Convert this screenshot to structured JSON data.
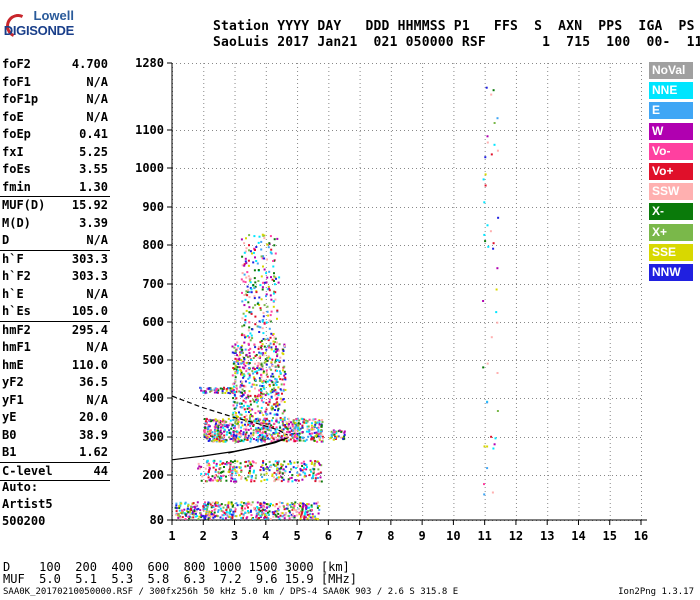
{
  "logo": {
    "line1": "Lowell",
    "line2": "DIGISONDE"
  },
  "header": {
    "line1": "Station YYYY DAY   DDD HHMMSS P1   FFS  S  AXN  PPS  IGA  PS",
    "line2": "SaoLuis 2017 Jan21  021 050000 RSF       1  715  100  00-  11"
  },
  "params": [
    {
      "k": "foF2",
      "v": "4.700"
    },
    {
      "k": "foF1",
      "v": "N/A"
    },
    {
      "k": "foF1p",
      "v": "N/A"
    },
    {
      "k": "foE",
      "v": "N/A"
    },
    {
      "k": "foEp",
      "v": "0.41"
    },
    {
      "k": "fxI",
      "v": "5.25"
    },
    {
      "k": "foEs",
      "v": "3.55"
    },
    {
      "k": "fmin",
      "v": "1.30",
      "sep": true
    },
    {
      "k": "MUF(D)",
      "v": "15.92"
    },
    {
      "k": "M(D)",
      "v": "3.39"
    },
    {
      "k": "D",
      "v": "N/A",
      "sep": true
    },
    {
      "k": "h`F",
      "v": "303.3"
    },
    {
      "k": "h`F2",
      "v": "303.3"
    },
    {
      "k": "h`E",
      "v": "N/A"
    },
    {
      "k": "h`Es",
      "v": "105.0",
      "sep": true
    },
    {
      "k": "hmF2",
      "v": "295.4"
    },
    {
      "k": "hmF1",
      "v": "N/A"
    },
    {
      "k": "hmE",
      "v": "110.0"
    },
    {
      "k": "yF2",
      "v": "36.5"
    },
    {
      "k": "yF1",
      "v": "N/A"
    },
    {
      "k": "yE",
      "v": "20.0"
    },
    {
      "k": "B0",
      "v": "38.9"
    },
    {
      "k": "B1",
      "v": "1.62",
      "sep": true
    },
    {
      "k": "C-level",
      "v": "44",
      "sep": true
    }
  ],
  "auto": {
    "l1": "Auto:",
    "l2": "Artist5",
    "l3": "500200"
  },
  "legend": [
    {
      "label": "NoVal",
      "color": "#a0a0a0"
    },
    {
      "label": "NNE",
      "color": "#00e5ff"
    },
    {
      "label": "E",
      "color": "#3fa6f5"
    },
    {
      "label": "W",
      "color": "#b000b0"
    },
    {
      "label": "Vo-",
      "color": "#ff40a0"
    },
    {
      "label": "Vo+",
      "color": "#e0102a"
    },
    {
      "label": "SSW",
      "color": "#ffb0b0"
    },
    {
      "label": "X-",
      "color": "#0a7a0a"
    },
    {
      "label": "X+",
      "color": "#7ab84a"
    },
    {
      "label": "SSE",
      "color": "#d8d800"
    },
    {
      "label": "NNW",
      "color": "#2020e0"
    }
  ],
  "footer": {
    "d_row": "D    100  200  400  600  800 1000 1500 3000 [km]",
    "muf_row": "MUF  5.0  5.1  5.3  5.8  6.3  7.2  9.6 15.9 [MHz]",
    "file": "SAA0K_20170210050000.RSF / 300fx256h 50 kHz 5.0 km / DPS-4 SAA0K 903 / 2.6 S 315.8 E",
    "version": "Ion2Png 1.3.17"
  },
  "chart_data": {
    "type": "scatter",
    "title": "",
    "xlabel": "",
    "ylabel": "",
    "xlim": [
      1,
      16
    ],
    "ylim": [
      80,
      1280
    ],
    "xticks": [
      1,
      2,
      3,
      4,
      5,
      6,
      7,
      8,
      9,
      10,
      11,
      12,
      13,
      14,
      15,
      16
    ],
    "yticks": [
      80,
      200,
      300,
      400,
      500,
      600,
      700,
      800,
      900,
      1000,
      1100,
      1280
    ],
    "x_scale": "linear",
    "y_scale": "log-like",
    "grid": true,
    "legend_position": "right",
    "traces": [
      {
        "name": "",
        "style": "solid",
        "points": [
          [
            1.0,
            240
          ],
          [
            2.0,
            250
          ],
          [
            3.0,
            262
          ],
          [
            3.8,
            275
          ],
          [
            4.3,
            285
          ],
          [
            4.7,
            298
          ]
        ]
      },
      {
        "name": "",
        "style": "solid",
        "points": [
          [
            2.8,
            258
          ],
          [
            3.6,
            272
          ],
          [
            4.2,
            285
          ],
          [
            4.6,
            295
          ]
        ]
      },
      {
        "name": "",
        "style": "dashed",
        "points": [
          [
            1.0,
            405
          ],
          [
            2.0,
            375
          ],
          [
            3.0,
            350
          ],
          [
            3.8,
            333
          ],
          [
            4.4,
            318
          ],
          [
            4.7,
            305
          ]
        ]
      }
    ],
    "clusters": [
      {
        "name": "F2 trace",
        "x": [
          2.0,
          5.8
        ],
        "y": [
          290,
          350
        ],
        "count": 700
      },
      {
        "name": "F2 spread",
        "x": [
          2.9,
          4.6
        ],
        "y": [
          350,
          550
        ],
        "count": 500
      },
      {
        "name": "F2 upper spread",
        "x": [
          3.2,
          4.4
        ],
        "y": [
          550,
          830
        ],
        "count": 220
      },
      {
        "name": "Es",
        "x": [
          1.0,
          5.7
        ],
        "y": [
          85,
          130
        ],
        "count": 500
      },
      {
        "name": "200 km band",
        "x": [
          1.8,
          5.8
        ],
        "y": [
          185,
          240
        ],
        "count": 320
      },
      {
        "name": "420 km band",
        "x": [
          1.8,
          3.0
        ],
        "y": [
          415,
          430
        ],
        "count": 60
      },
      {
        "name": "X-trace",
        "x": [
          6.0,
          6.5
        ],
        "y": [
          295,
          320
        ],
        "count": 40
      },
      {
        "name": "11 MHz column",
        "x": [
          10.9,
          11.4
        ],
        "y": [
          80,
          1280
        ],
        "count": 45
      }
    ]
  }
}
